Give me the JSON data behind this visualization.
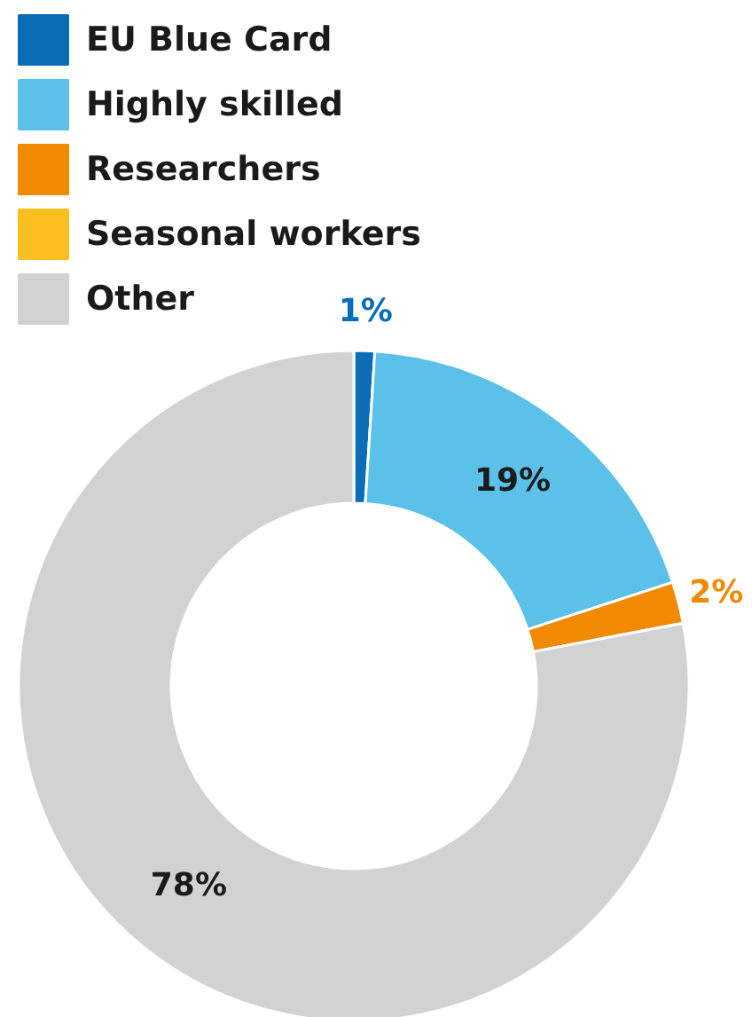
{
  "chart_data": {
    "type": "donut",
    "categories": [
      "EU Blue Card",
      "Highly skilled",
      "Researchers",
      "Seasonal workers",
      "Other"
    ],
    "values": [
      1,
      19,
      2,
      0,
      78
    ],
    "colors": [
      "#0a6db7",
      "#5bc1e8",
      "#f18a00",
      "#fbbf1f",
      "#d2d2d2"
    ],
    "value_labels": [
      "1%",
      "19%",
      "2%",
      null,
      "78%"
    ],
    "legend": "top left"
  }
}
